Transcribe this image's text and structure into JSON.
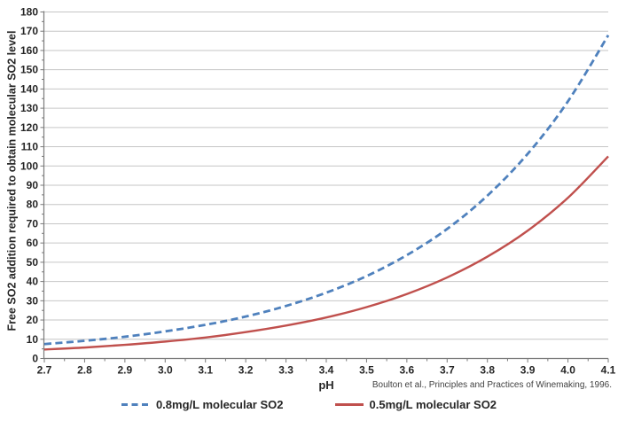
{
  "chart_data": {
    "type": "line",
    "title": "",
    "xlabel": "pH",
    "ylabel": "Free SO2 addition required to obtain molecular SO2 level",
    "x": [
      2.7,
      2.8,
      2.9,
      3.0,
      3.1,
      3.2,
      3.3,
      3.4,
      3.5,
      3.6,
      3.7,
      3.8,
      3.9,
      4.0,
      4.1
    ],
    "series": [
      {
        "name": "0.8mg/L molecular SO2",
        "color": "#4F81BD",
        "style": "dashed",
        "values": [
          7.5,
          9.2,
          11.3,
          14.1,
          17.5,
          21.8,
          27.3,
          34.2,
          42.8,
          53.7,
          67.3,
          84.6,
          106.3,
          133.6,
          167.9
        ]
      },
      {
        "name": "0.5mg/L molecular SO2",
        "color": "#C0504D",
        "style": "solid",
        "values": [
          4.7,
          5.7,
          7.1,
          8.8,
          10.9,
          13.7,
          17.1,
          21.3,
          26.7,
          33.5,
          42.1,
          52.9,
          66.4,
          83.5,
          105.0
        ]
      }
    ],
    "xlim": [
      2.7,
      4.1
    ],
    "ylim": [
      0,
      180
    ],
    "ytick_step": 10,
    "xtick_step": 0.1,
    "grid": "horizontal",
    "legend_position": "bottom",
    "citation": "Boulton et al., Principles and Practices of Winemaking, 1996."
  },
  "colors": {
    "gridline": "#c6c6c6",
    "axis": "#7a7a7a",
    "tick_label": "#262626",
    "background": "#ffffff"
  }
}
